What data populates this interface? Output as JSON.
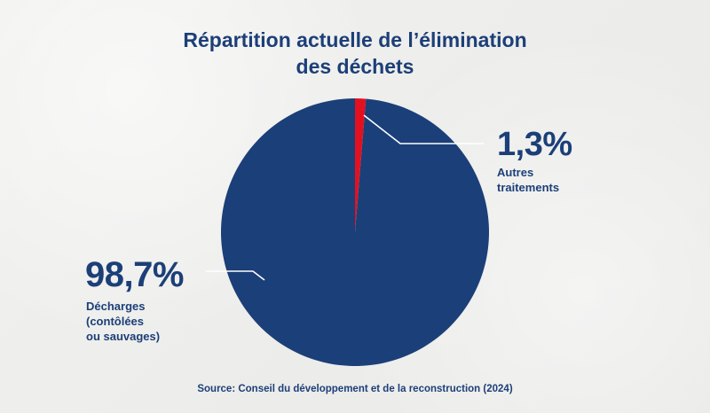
{
  "title_lines": [
    "Répartition actuelle de l’élimination",
    "des déchets"
  ],
  "chart_data": {
    "type": "pie",
    "title": "Répartition actuelle de l’élimination des déchets",
    "slices": [
      {
        "pct_label": "98,7%",
        "desc_lines": [
          "Décharges",
          "(contôlées",
          "ou sauvages)"
        ],
        "value": 98.7,
        "color": "#1b3f78"
      },
      {
        "pct_label": "1,3%",
        "desc_lines": [
          "Autres",
          "traitements"
        ],
        "value": 1.3,
        "color": "#e3111f"
      }
    ],
    "start": "12 o'clock",
    "direction": "clockwise, small slice first",
    "label_placement": "outside with leader lines"
  },
  "source": "Source: Conseil du développement et de la reconstruction (2024)"
}
